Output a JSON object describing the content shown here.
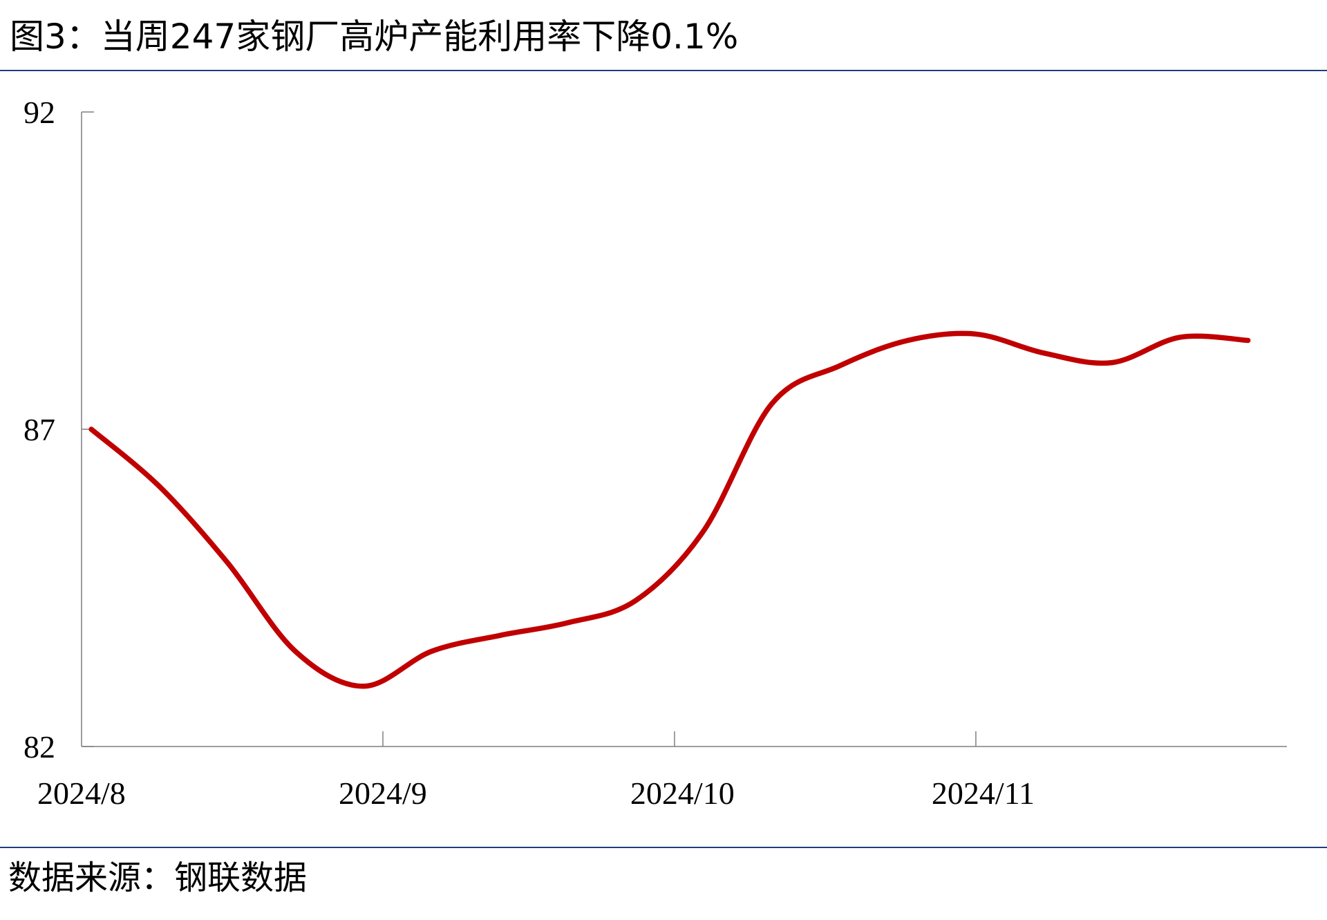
{
  "header": {
    "title": "图3：当周247家钢厂高炉产能利用率下降0.1%"
  },
  "footer": {
    "source": "数据来源：钢联数据"
  },
  "chart_data": {
    "type": "line",
    "title": "图3：当周247家钢厂高炉产能利用率下降0.1%",
    "xlabel": "",
    "ylabel": "",
    "ylim": [
      82,
      92
    ],
    "yticks": [
      82,
      87,
      92
    ],
    "x_tick_labels": [
      "2024/8",
      "2024/9",
      "2024/10",
      "2024/11"
    ],
    "grid": false,
    "legend": "none",
    "line_color": "#c00000",
    "series": [
      {
        "x": [
          "2024-08-02",
          "2024-08-09",
          "2024-08-16",
          "2024-08-23",
          "2024-08-30",
          "2024-09-06",
          "2024-09-13",
          "2024-09-20",
          "2024-09-27",
          "2024-10-04",
          "2024-10-11",
          "2024-10-18",
          "2024-10-25",
          "2024-11-01",
          "2024-11-08",
          "2024-11-15",
          "2024-11-22",
          "2024-11-29"
        ],
        "values": [
          87.0,
          86.1,
          84.9,
          83.5,
          82.95,
          83.5,
          83.75,
          83.95,
          84.3,
          85.4,
          87.4,
          88.0,
          88.4,
          88.5,
          88.2,
          88.05,
          88.45,
          88.4
        ]
      }
    ]
  }
}
